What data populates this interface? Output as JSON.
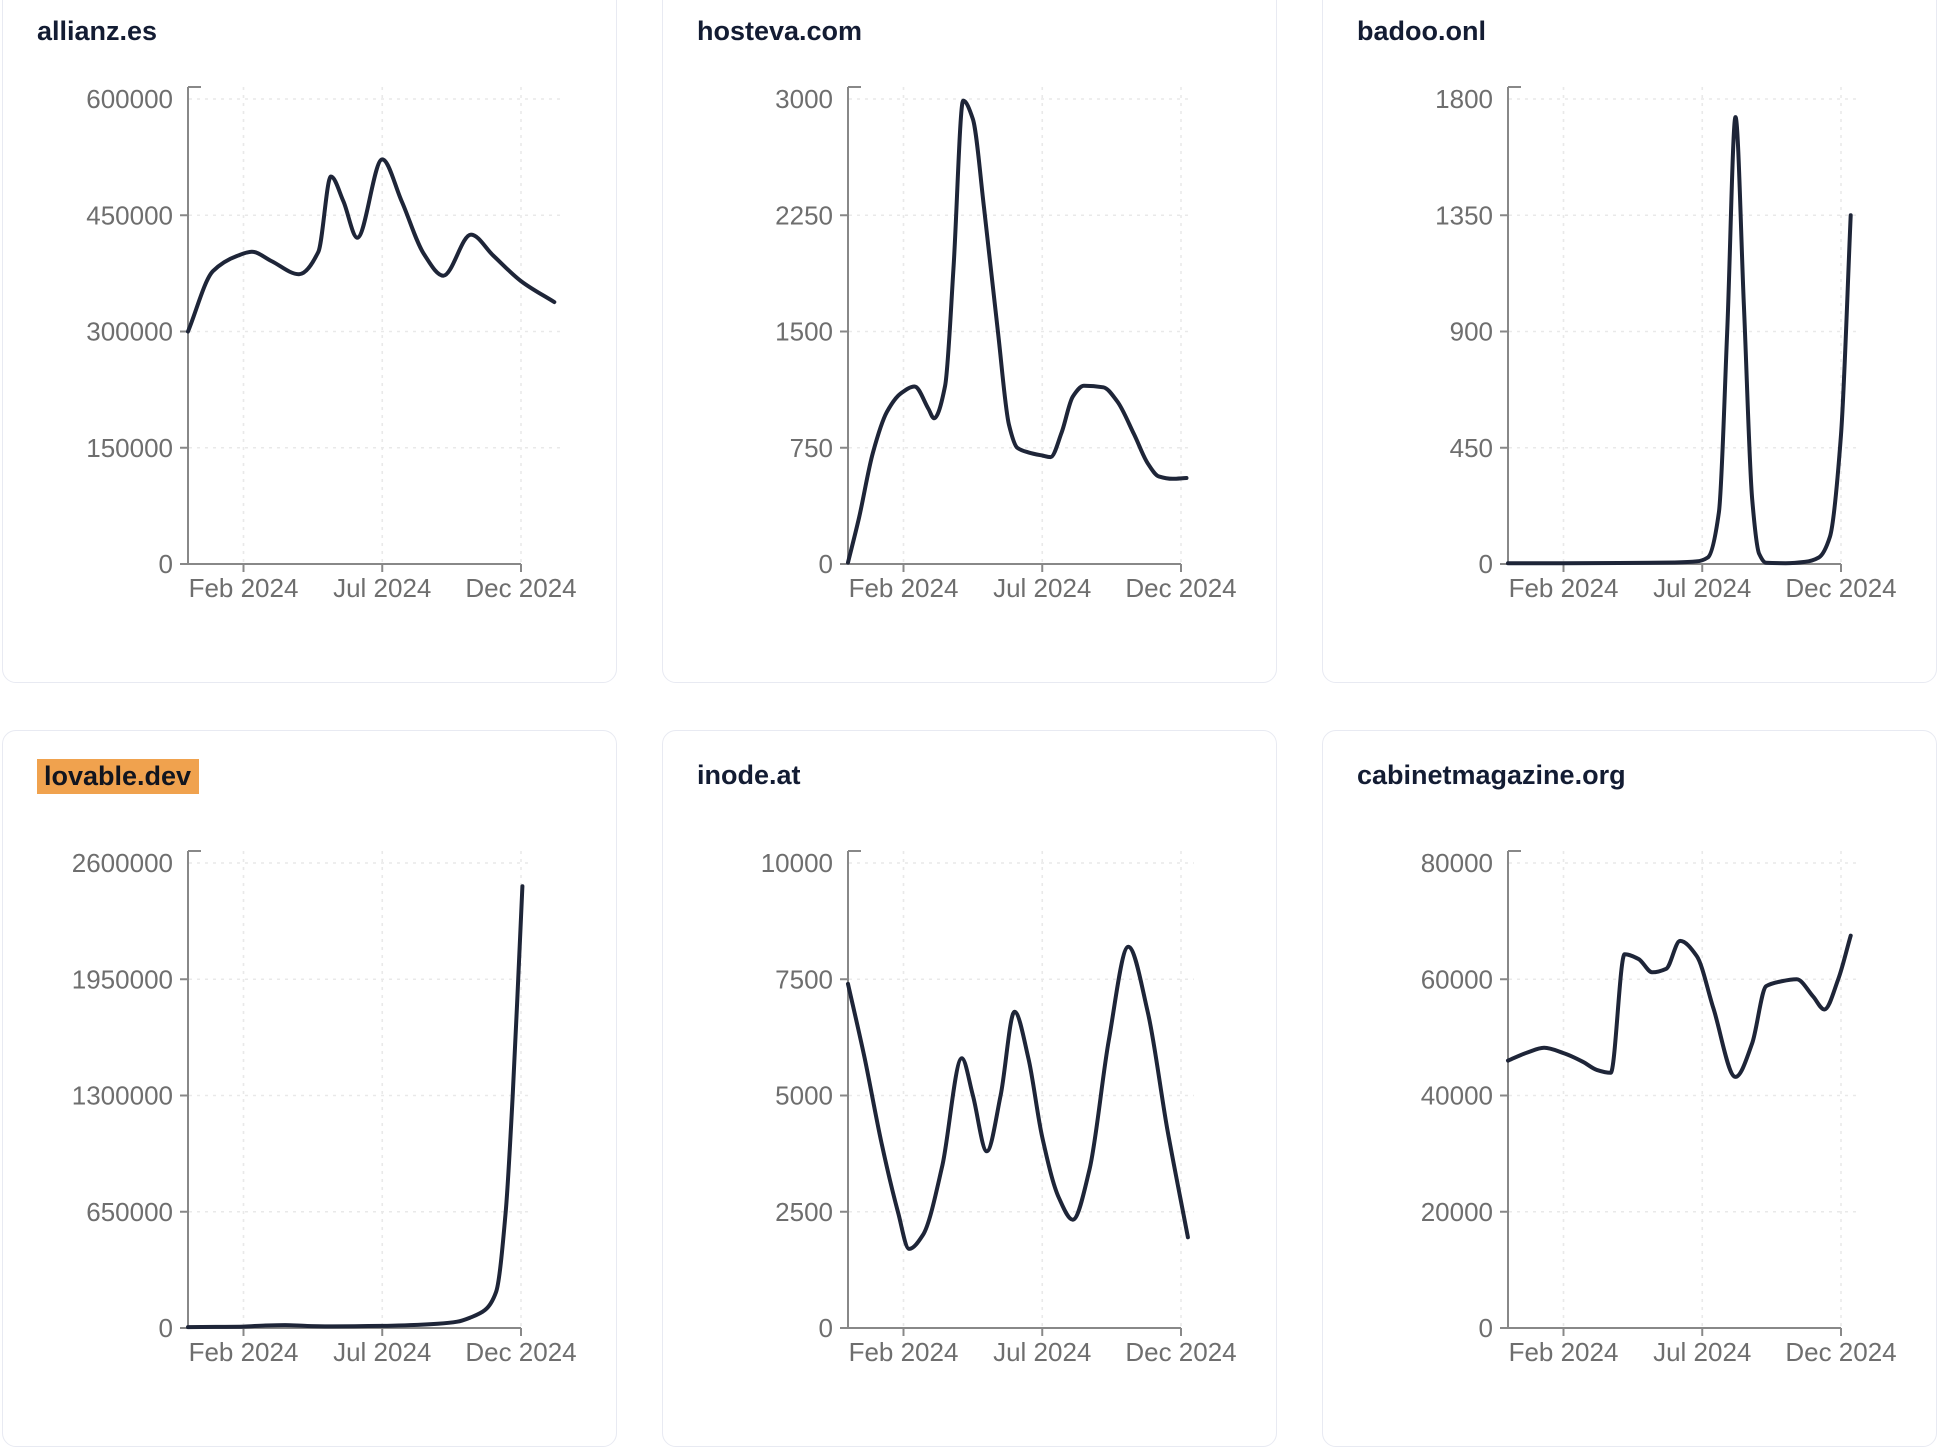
{
  "colors": {
    "background": "#ffffff",
    "line": "#1e2538",
    "axis": "#888888",
    "tick_text": "#6e6e6e",
    "grid": "#e9e9e9",
    "card_border": "#e8eaf2",
    "title_text": "#131c33",
    "highlight_bg": "#f0a24e",
    "highlight_text": "#11151f"
  },
  "chart_data": [
    {
      "type": "line",
      "title": "allianz.es",
      "highlighted": false,
      "legend": "none",
      "grid": "dashed",
      "x_months_note": "month index: 0 = axis origin (Dec 2023), 2 = Feb 2024, 7 = Jul 2024, 12 = Dec 2024",
      "x_ticks": [
        {
          "label": "Feb 2024",
          "month": 2
        },
        {
          "label": "Jul 2024",
          "month": 7
        },
        {
          "label": "Dec 2024",
          "month": 12
        }
      ],
      "y_ticks": [
        600000,
        450000,
        300000,
        150000,
        0
      ],
      "ylim": [
        0,
        600000
      ],
      "points": [
        [
          0,
          300000
        ],
        [
          0.9,
          378000
        ],
        [
          1.8,
          398000
        ],
        [
          2.3,
          403000
        ],
        [
          3,
          391000
        ],
        [
          4,
          374000
        ],
        [
          4.7,
          403000
        ],
        [
          5.15,
          500000
        ],
        [
          5.6,
          468000
        ],
        [
          6.1,
          421000
        ],
        [
          7,
          522000
        ],
        [
          7.7,
          468000
        ],
        [
          8.5,
          400000
        ],
        [
          9.2,
          372000
        ],
        [
          10.2,
          425000
        ],
        [
          11,
          398000
        ],
        [
          12,
          365000
        ],
        [
          13.2,
          338000
        ]
      ]
    },
    {
      "type": "line",
      "title": "hosteva.com",
      "highlighted": false,
      "legend": "none",
      "grid": "dashed",
      "x_months_note": "month index: 0 = axis origin (Dec 2023), 2 = Feb 2024, 7 = Jul 2024, 12 = Dec 2024",
      "x_ticks": [
        {
          "label": "Feb 2024",
          "month": 2
        },
        {
          "label": "Jul 2024",
          "month": 7
        },
        {
          "label": "Dec 2024",
          "month": 12
        }
      ],
      "y_ticks": [
        3000,
        2250,
        1500,
        750,
        0
      ],
      "ylim": [
        0,
        3000
      ],
      "points": [
        [
          0,
          10
        ],
        [
          0.4,
          300
        ],
        [
          0.9,
          720
        ],
        [
          1.4,
          980
        ],
        [
          1.9,
          1100
        ],
        [
          2.4,
          1145
        ],
        [
          2.9,
          1000
        ],
        [
          3.1,
          940
        ],
        [
          3.5,
          1150
        ],
        [
          3.8,
          1900
        ],
        [
          4.15,
          2990
        ],
        [
          4.5,
          2870
        ],
        [
          4.9,
          2300
        ],
        [
          5.4,
          1500
        ],
        [
          5.8,
          900
        ],
        [
          6.1,
          750
        ],
        [
          6.5,
          720
        ],
        [
          7,
          700
        ],
        [
          7.3,
          690
        ],
        [
          7.7,
          850
        ],
        [
          8.1,
          1080
        ],
        [
          8.5,
          1150
        ],
        [
          9.2,
          1140
        ],
        [
          9.7,
          1050
        ],
        [
          10.3,
          840
        ],
        [
          10.8,
          650
        ],
        [
          11.2,
          565
        ],
        [
          11.7,
          550
        ],
        [
          12.2,
          555
        ]
      ]
    },
    {
      "type": "line",
      "title": "badoo.onl",
      "highlighted": false,
      "legend": "none",
      "grid": "dashed",
      "x_months_note": "month index: 0 = axis origin (Dec 2023), 2 = Feb 2024, 7 = Jul 2024, 12 = Dec 2024",
      "x_ticks": [
        {
          "label": "Feb 2024",
          "month": 2
        },
        {
          "label": "Jul 2024",
          "month": 7
        },
        {
          "label": "Dec 2024",
          "month": 12
        }
      ],
      "y_ticks": [
        1800,
        1350,
        900,
        450,
        0
      ],
      "ylim": [
        0,
        1800
      ],
      "points": [
        [
          0,
          3
        ],
        [
          2,
          3
        ],
        [
          4,
          4
        ],
        [
          6,
          6
        ],
        [
          6.8,
          10
        ],
        [
          7.2,
          25
        ],
        [
          7.6,
          200
        ],
        [
          7.9,
          900
        ],
        [
          8.2,
          1730
        ],
        [
          8.5,
          1000
        ],
        [
          8.8,
          250
        ],
        [
          9.05,
          40
        ],
        [
          9.3,
          5
        ],
        [
          10,
          3
        ],
        [
          10.7,
          8
        ],
        [
          11.2,
          25
        ],
        [
          11.6,
          105
        ],
        [
          12,
          500
        ],
        [
          12.35,
          1350
        ]
      ]
    },
    {
      "type": "line",
      "title": "lovable.dev",
      "highlighted": true,
      "legend": "none",
      "grid": "dashed",
      "x_months_note": "month index: 0 = axis origin (Dec 2023), 2 = Feb 2024, 7 = Jul 2024, 12 = Dec 2024",
      "x_ticks": [
        {
          "label": "Feb 2024",
          "month": 2
        },
        {
          "label": "Jul 2024",
          "month": 7
        },
        {
          "label": "Dec 2024",
          "month": 12
        }
      ],
      "y_ticks": [
        2600000,
        1950000,
        1300000,
        650000,
        0
      ],
      "ylim": [
        0,
        2600000
      ],
      "points": [
        [
          0,
          5000
        ],
        [
          1,
          6000
        ],
        [
          2,
          8000
        ],
        [
          2.8,
          14000
        ],
        [
          3.5,
          16000
        ],
        [
          4.3,
          11000
        ],
        [
          5.2,
          9000
        ],
        [
          6,
          10000
        ],
        [
          7,
          12000
        ],
        [
          8,
          16000
        ],
        [
          9,
          24000
        ],
        [
          9.7,
          35000
        ],
        [
          10.2,
          60000
        ],
        [
          10.7,
          100000
        ],
        [
          11.1,
          200000
        ],
        [
          11.45,
          650000
        ],
        [
          11.7,
          1300000
        ],
        [
          11.9,
          1950000
        ],
        [
          12.05,
          2470000
        ]
      ]
    },
    {
      "type": "line",
      "title": "inode.at",
      "highlighted": false,
      "legend": "none",
      "grid": "dashed",
      "x_months_note": "month index: 0 = axis origin (Dec 2023), 2 = Feb 2024, 7 = Jul 2024, 12 = Dec 2024",
      "x_ticks": [
        {
          "label": "Feb 2024",
          "month": 2
        },
        {
          "label": "Jul 2024",
          "month": 7
        },
        {
          "label": "Dec 2024",
          "month": 12
        }
      ],
      "y_ticks": [
        10000,
        7500,
        5000,
        2500,
        0
      ],
      "ylim": [
        0,
        10000
      ],
      "points": [
        [
          0,
          7400
        ],
        [
          0.6,
          5800
        ],
        [
          1.2,
          4000
        ],
        [
          1.8,
          2500
        ],
        [
          2.2,
          1700
        ],
        [
          2.7,
          2000
        ],
        [
          3.4,
          3500
        ],
        [
          4.1,
          5800
        ],
        [
          4.5,
          5000
        ],
        [
          5,
          3800
        ],
        [
          5.5,
          5000
        ],
        [
          6,
          6800
        ],
        [
          6.5,
          5800
        ],
        [
          7,
          4100
        ],
        [
          7.6,
          2800
        ],
        [
          8.1,
          2330
        ],
        [
          8.7,
          3400
        ],
        [
          9.4,
          6200
        ],
        [
          10.1,
          8200
        ],
        [
          10.8,
          6800
        ],
        [
          11.5,
          4300
        ],
        [
          12.25,
          1950
        ]
      ]
    },
    {
      "type": "line",
      "title": "cabinetmagazine.org",
      "highlighted": false,
      "legend": "none",
      "grid": "dashed",
      "x_months_note": "month index: 0 = axis origin (Dec 2023), 2 = Feb 2024, 7 = Jul 2024, 12 = Dec 2024",
      "x_ticks": [
        {
          "label": "Feb 2024",
          "month": 2
        },
        {
          "label": "Jul 2024",
          "month": 7
        },
        {
          "label": "Dec 2024",
          "month": 12
        }
      ],
      "y_ticks": [
        80000,
        60000,
        40000,
        20000,
        0
      ],
      "ylim": [
        0,
        80000
      ],
      "points": [
        [
          0,
          46000
        ],
        [
          0.7,
          47400
        ],
        [
          1.3,
          48200
        ],
        [
          2,
          47300
        ],
        [
          2.7,
          45800
        ],
        [
          3.2,
          44400
        ],
        [
          3.7,
          43900
        ],
        [
          4.2,
          64300
        ],
        [
          4.7,
          63500
        ],
        [
          5.2,
          61200
        ],
        [
          5.7,
          61800
        ],
        [
          6.2,
          66600
        ],
        [
          6.8,
          64000
        ],
        [
          7.4,
          55000
        ],
        [
          8.2,
          43200
        ],
        [
          8.8,
          49000
        ],
        [
          9.3,
          58800
        ],
        [
          9.8,
          59600
        ],
        [
          10.4,
          60000
        ],
        [
          11,
          57000
        ],
        [
          11.4,
          54800
        ],
        [
          11.9,
          60000
        ],
        [
          12.35,
          67500
        ]
      ]
    }
  ]
}
